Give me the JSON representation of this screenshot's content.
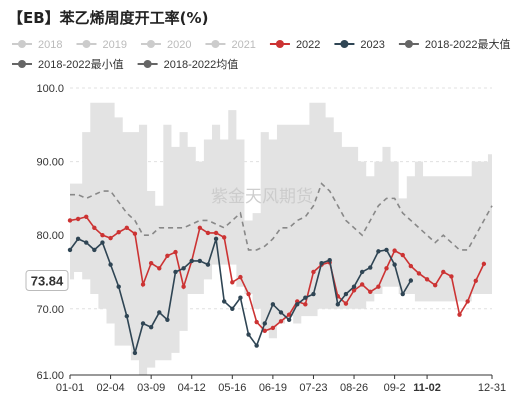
{
  "title": "【EB】苯乙烯周度开工率(%)",
  "watermark": "紫金天风期货",
  "chart_data": {
    "type": "line",
    "title": "【EB】苯乙烯周度开工率(%)",
    "ylim": [
      61,
      100
    ],
    "y_ticks": [
      "61.00",
      "70.00",
      "80.00",
      "90.00",
      "100.0"
    ],
    "x_ticks": [
      "01-01",
      "02-04",
      "03-09",
      "04-12",
      "05-16",
      "06-19",
      "07-23",
      "08-26",
      "09-2",
      "11-02",
      "12-31"
    ],
    "x_tick_weeks": [
      0,
      5,
      10,
      15,
      20,
      25,
      30,
      35,
      40,
      44,
      52
    ],
    "current_value_label": "73.84",
    "current_value": 73.84,
    "grid": "horizontal dashed",
    "legend_position": "top",
    "legend": [
      {
        "name": "2018",
        "color": "#cccccc",
        "marker": "circle",
        "line": "solid"
      },
      {
        "name": "2019",
        "color": "#cccccc",
        "marker": "circle",
        "line": "solid"
      },
      {
        "name": "2020",
        "color": "#cccccc",
        "marker": "circle",
        "line": "solid"
      },
      {
        "name": "2021",
        "color": "#cccccc",
        "marker": "circle",
        "line": "solid"
      },
      {
        "name": "2022",
        "color": "#cc3333",
        "marker": "circle",
        "line": "solid"
      },
      {
        "name": "2023",
        "color": "#2f4554",
        "marker": "circle",
        "line": "solid"
      },
      {
        "name": "2018-2022最大值",
        "color": "#666666",
        "marker": "circle",
        "line": "solid"
      },
      {
        "name": "2018-2022最小值",
        "color": "#666666",
        "marker": "circle",
        "line": "solid"
      },
      {
        "name": "2018-2022均值",
        "color": "#666666",
        "marker": "circle",
        "line": "solid"
      }
    ],
    "series": [
      {
        "name": "2018-2022最大值",
        "role": "band_max",
        "color": "#e3e3e3",
        "values": [
          87,
          87,
          94,
          98,
          98,
          98,
          96,
          94,
          94,
          95,
          86,
          84,
          95,
          92,
          94,
          92,
          90,
          93,
          95,
          93,
          97,
          93,
          82,
          83,
          94,
          93,
          95,
          95,
          95,
          95,
          98,
          98,
          96,
          94,
          92,
          92,
          90,
          88,
          90,
          92,
          90,
          85,
          88,
          90,
          88,
          88,
          88,
          88,
          88,
          88,
          90,
          90,
          91
        ]
      },
      {
        "name": "2018-2022最小值",
        "role": "band_min",
        "color": "#e3e3e3",
        "values": [
          74,
          75,
          74,
          72,
          70,
          68,
          65,
          65,
          63,
          61,
          62,
          63,
          63,
          64,
          67,
          72,
          72,
          74,
          76,
          76,
          76,
          73,
          72,
          70,
          67,
          66,
          68,
          69,
          68,
          69,
          69,
          70,
          70,
          70,
          70,
          70,
          70,
          71,
          72,
          73,
          73,
          72,
          72,
          71,
          71,
          71,
          71,
          71,
          71,
          71,
          72,
          72,
          72
        ]
      },
      {
        "name": "2018-2022均值",
        "role": "mean",
        "color": "#888888",
        "values": [
          85.5,
          85.5,
          85,
          85.5,
          86,
          86,
          84.5,
          83,
          82,
          80,
          80,
          81,
          81,
          81,
          81,
          81.5,
          82,
          82,
          81.5,
          81,
          82,
          83,
          78,
          78,
          78.5,
          79.5,
          81,
          81,
          82,
          82.5,
          84,
          87,
          86,
          84,
          82,
          81,
          80,
          82,
          84,
          85,
          85,
          83,
          82,
          81,
          80,
          79,
          80,
          79,
          78,
          78,
          80,
          82,
          84
        ]
      },
      {
        "name": "2022",
        "color": "#cc3333",
        "values": [
          82.0,
          82.2,
          82.5,
          81,
          80,
          79.6,
          80.4,
          81.0,
          80.2,
          73.3,
          76.2,
          75.5,
          77.2,
          77.7,
          73.0,
          76.5,
          81.0,
          80.3,
          80.3,
          79.7,
          73.6,
          74.3,
          72.0,
          68.2,
          67.0,
          67.4,
          68.3,
          69.2,
          71.0,
          70.6,
          75.0,
          76.0,
          76.3,
          71.7,
          70.7,
          72.5,
          73.3,
          72.3,
          73.0,
          75.5,
          77.9,
          77.3,
          75.8,
          74.8,
          74.0,
          73.2,
          75.0,
          74.4,
          69.2,
          71.0,
          73.8,
          76.1
        ]
      },
      {
        "name": "2023",
        "color": "#2f4554",
        "values": [
          78.0,
          79.5,
          79.0,
          78.0,
          79.0,
          76.0,
          73.0,
          69.0,
          64.0,
          68.0,
          67.5,
          69.5,
          68.5,
          75.0,
          75.5,
          76.5,
          76.5,
          76.0,
          79.5,
          71.0,
          70.0,
          71.5,
          66.5,
          65.0,
          68.0,
          70.6,
          69.5,
          68.5,
          70.6,
          71.5,
          72.0,
          76.2,
          76.6,
          70.6,
          72.0,
          73.0,
          75.0,
          75.6,
          77.8,
          78.0,
          76.0,
          72.0,
          73.84
        ]
      }
    ]
  }
}
